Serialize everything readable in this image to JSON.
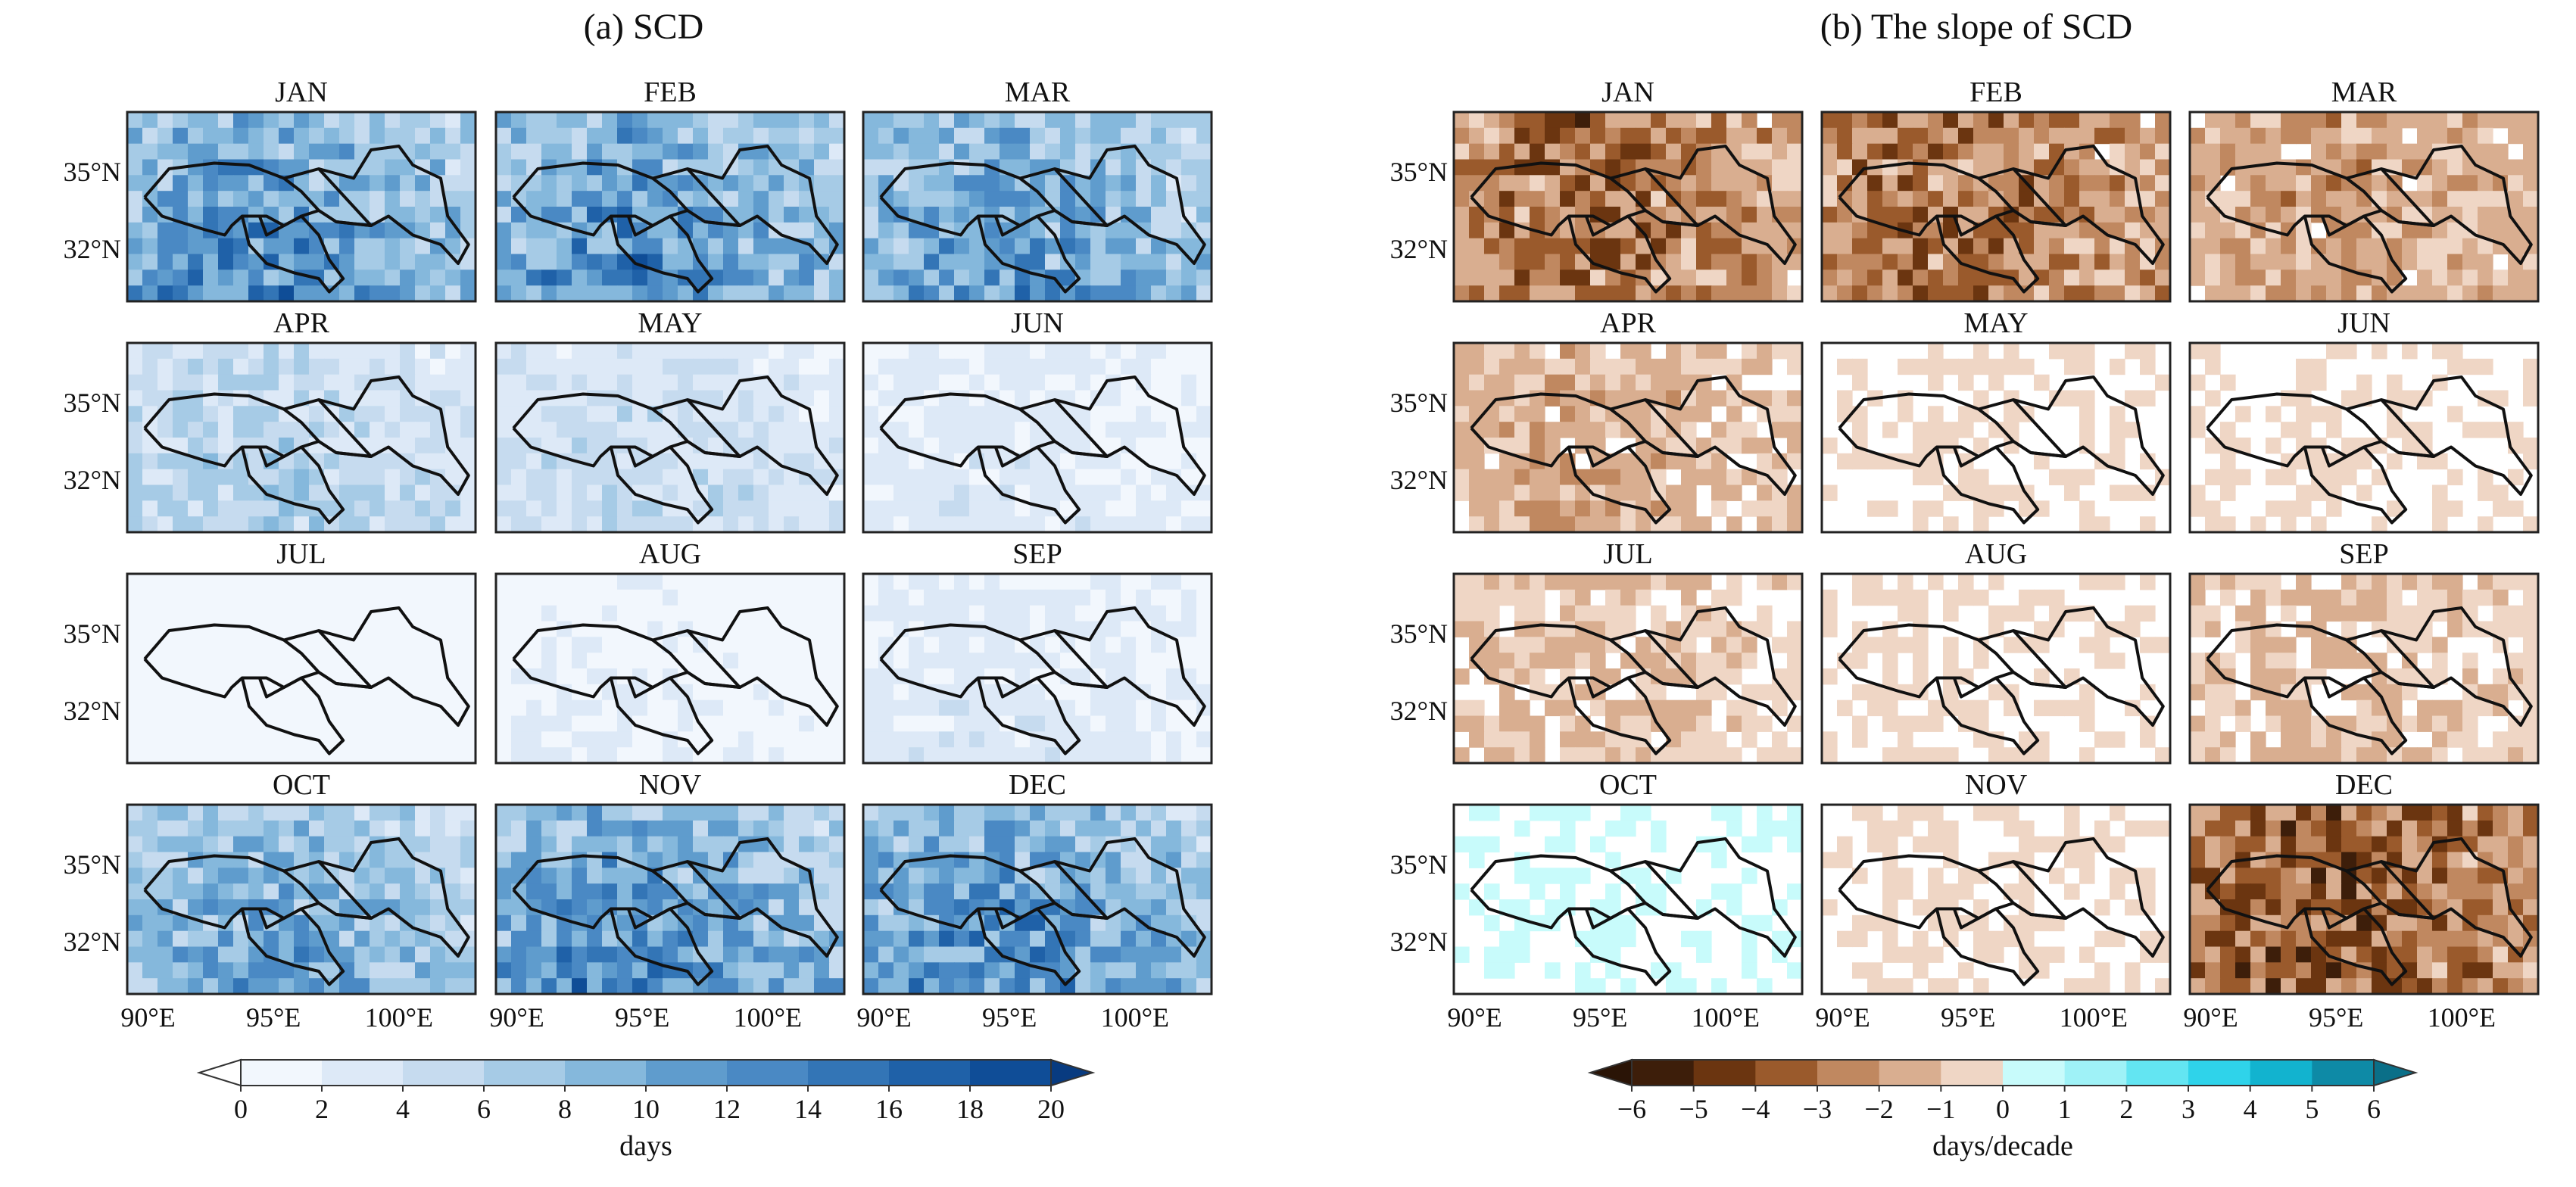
{
  "panel_a": {
    "title": "(a) SCD",
    "colorbar_label": "days",
    "colorbar_ticks": [
      "0",
      "2",
      "4",
      "6",
      "8",
      "10",
      "12",
      "14",
      "16",
      "18",
      "20"
    ],
    "colors": [
      "#f2f7fd",
      "#dde9f7",
      "#c6dbef",
      "#a6cbe6",
      "#85b8dc",
      "#5f9ccd",
      "#4a89c4",
      "#3375b6",
      "#1f61a8",
      "#0f4d97",
      "#083b80"
    ]
  },
  "panel_b": {
    "title": "(b) The slope of SCD",
    "colorbar_label": "days/decade",
    "colorbar_ticks": [
      "−6",
      "−5",
      "−4",
      "−3",
      "−2",
      "−1",
      "0",
      "1",
      "2",
      "3",
      "4",
      "5",
      "6"
    ],
    "colors": [
      "#3d1e0a",
      "#6b3510",
      "#9a5a2c",
      "#c08860",
      "#d9ae90",
      "#efd6c5",
      "#c8fbfb",
      "#9ff2f7",
      "#63e5f2",
      "#2fd3ea",
      "#12b3cf",
      "#0e8aa6"
    ]
  },
  "months": [
    "JAN",
    "FEB",
    "MAR",
    "APR",
    "MAY",
    "JUN",
    "JUL",
    "AUG",
    "SEP",
    "OCT",
    "NOV",
    "DEC"
  ],
  "lat_labels": [
    "35°N",
    "32°N"
  ],
  "lon_labels": [
    "90°E",
    "95°E",
    "100°E"
  ],
  "chart_data": [
    {
      "type": "heatmap",
      "title": "(a) SCD",
      "units": "days",
      "range": [
        0,
        20
      ],
      "subplots": [
        "JAN",
        "FEB",
        "MAR",
        "APR",
        "MAY",
        "JUN",
        "JUL",
        "AUG",
        "SEP",
        "OCT",
        "NOV",
        "DEC"
      ],
      "approx_mean_level": [
        12,
        12,
        11,
        6,
        5,
        3,
        1,
        2,
        3,
        10,
        12,
        12
      ],
      "x_ticks": [
        "90°E",
        "95°E",
        "100°E"
      ],
      "y_ticks": [
        "35°N",
        "32°N"
      ]
    },
    {
      "type": "heatmap",
      "title": "(b) The slope of SCD",
      "units": "days/decade",
      "range": [
        -6,
        6
      ],
      "subplots": [
        "JAN",
        "FEB",
        "MAR",
        "APR",
        "MAY",
        "JUN",
        "JUL",
        "AUG",
        "SEP",
        "OCT",
        "NOV",
        "DEC"
      ],
      "approx_mean_level": [
        -3,
        -3,
        -2,
        -1.5,
        -0.5,
        -0.5,
        -1,
        -0.5,
        -1,
        0.5,
        -0.5,
        -3.5
      ],
      "x_ticks": [
        "90°E",
        "95°E",
        "100°E"
      ],
      "y_ticks": [
        "35°N",
        "32°N"
      ]
    }
  ]
}
